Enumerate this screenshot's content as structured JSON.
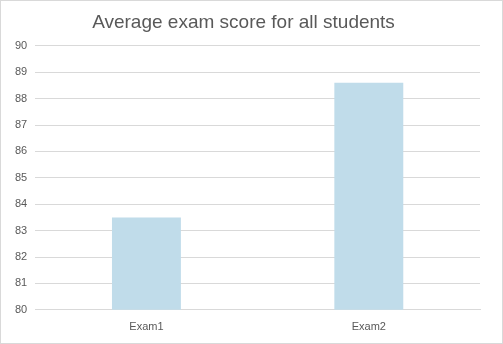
{
  "chart_data": {
    "type": "bar",
    "title": "Average exam score for all students",
    "categories": [
      "Exam1",
      "Exam2"
    ],
    "values": [
      83.5,
      88.6
    ],
    "color": "#c0dcea",
    "ylim": [
      80,
      90
    ],
    "yticks": [
      80,
      81,
      82,
      83,
      84,
      85,
      86,
      87,
      88,
      89,
      90
    ],
    "grid": true
  }
}
